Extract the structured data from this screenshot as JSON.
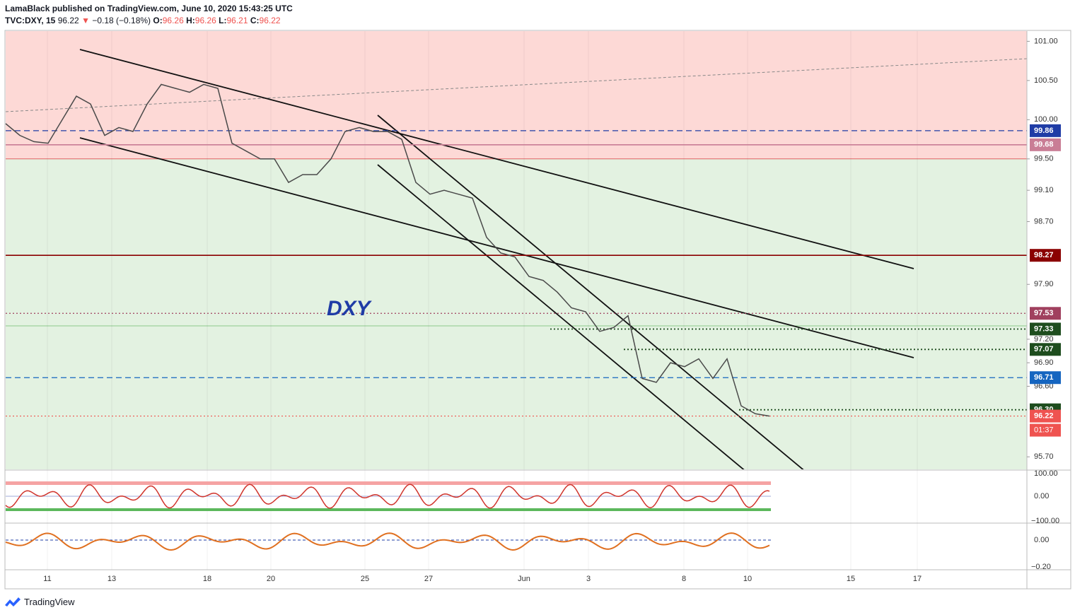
{
  "header": {
    "publisher": "LamaBlack published on TradingView.com, June 10, 2020 15:43:25 UTC",
    "symbol": "TVC:DXY, 15",
    "last": "96.22",
    "change": "−0.18 (−0.18%)",
    "open_label": "O:",
    "open": "96.26",
    "high_label": "H:",
    "high": "96.26",
    "low_label": "L:",
    "low": "96.21",
    "close_label": "C:",
    "close": "96.22"
  },
  "chart_data": {
    "type": "line",
    "annotation": "DXY",
    "color": "#4a4a4a",
    "values": [
      99.95,
      99.8,
      99.72,
      99.7,
      100.0,
      100.3,
      100.2,
      99.8,
      99.9,
      99.85,
      100.2,
      100.45,
      100.4,
      100.35,
      100.45,
      100.4,
      99.7,
      99.6,
      99.5,
      99.5,
      99.2,
      99.3,
      99.3,
      99.5,
      99.85,
      99.9,
      99.85,
      99.85,
      99.75,
      99.2,
      99.05,
      99.1,
      99.05,
      99.0,
      98.5,
      98.3,
      98.25,
      98.0,
      97.95,
      97.8,
      97.6,
      97.55,
      97.3,
      97.35,
      97.5,
      96.7,
      96.65,
      96.9,
      96.85,
      96.95,
      96.7,
      96.95,
      96.35,
      96.25,
      96.22
    ],
    "x_labels": [
      "11",
      "13",
      "18",
      "20",
      "25",
      "27",
      "Jun",
      "3",
      "8",
      "10",
      "15",
      "17"
    ],
    "ylim": [
      95.54,
      101.13
    ],
    "yticks": [
      {
        "value": 101,
        "label": "101.00"
      },
      {
        "value": 100.5,
        "label": "100.50"
      },
      {
        "value": 100,
        "label": "100.00"
      },
      {
        "value": 99.5,
        "label": "99.50"
      },
      {
        "value": 99.1,
        "label": "99.10"
      },
      {
        "value": 98.7,
        "label": "98.70"
      },
      {
        "value": 97.9,
        "label": "97.90"
      },
      {
        "value": 97.2,
        "label": "97.20"
      },
      {
        "value": 96.9,
        "label": "96.90"
      },
      {
        "value": 96.6,
        "label": "96.60"
      },
      {
        "value": 95.7,
        "label": "95.70"
      }
    ],
    "levels": [
      {
        "value": 99.86,
        "label": "99.86",
        "color": "#1f3ca6",
        "style": "dashed"
      },
      {
        "value": 99.68,
        "label": "99.68",
        "color": "#c97d95",
        "style": "solid"
      },
      {
        "value": 98.27,
        "label": "98.27",
        "color": "#8b0000",
        "style": "solid"
      },
      {
        "value": 97.53,
        "label": "97.53",
        "color": "#a0405e",
        "style": "dotted"
      },
      {
        "value": 97.33,
        "label": "97.33",
        "color": "#1e4d1e",
        "style": "dotted"
      },
      {
        "value": 97.07,
        "label": "97.07",
        "color": "#1e4d1e",
        "style": "dotted"
      },
      {
        "value": 96.71,
        "label": "96.71",
        "color": "#1565c0",
        "style": "dashed"
      },
      {
        "value": 96.3,
        "label": "96.30",
        "color": "#1e4d1e",
        "style": "dotted"
      },
      {
        "value": 96.22,
        "label": "96.22",
        "color": "#ef5350",
        "style": "dotted"
      }
    ],
    "countdown": "01:37",
    "osc1_ticks": [
      "100.00",
      "0.00",
      "−100.00"
    ],
    "osc2_ticks": [
      "0.00",
      "−0.20"
    ]
  },
  "footer": {
    "brand": "TradingView"
  }
}
